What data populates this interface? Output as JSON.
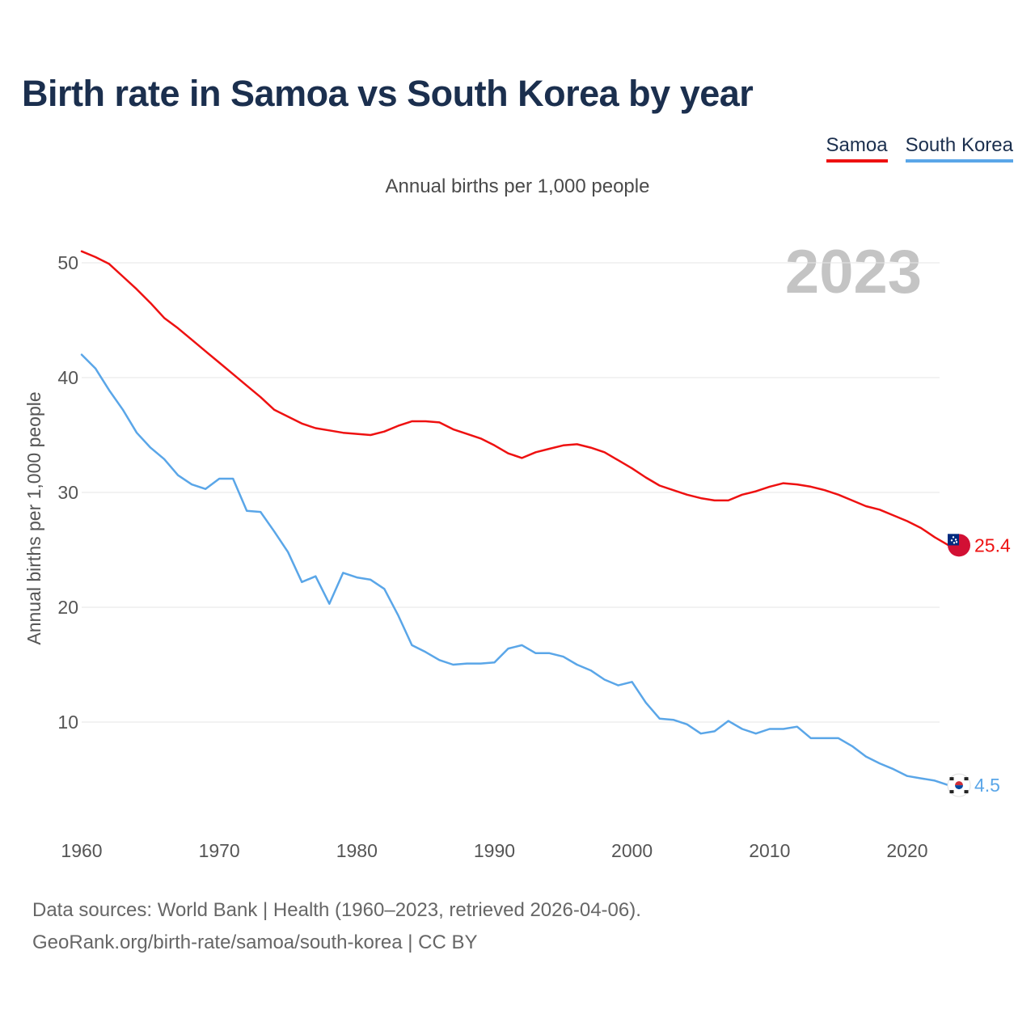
{
  "header": {
    "title": "Birth rate in Samoa vs South Korea by year"
  },
  "legend": {
    "items": [
      {
        "label": "Samoa",
        "color": "#ee1111"
      },
      {
        "label": "South Korea",
        "color": "#5aa6e8"
      }
    ]
  },
  "footer": {
    "source": "Data sources: World Bank | Health (1960–2023, retrieved 2026-04-06).",
    "credit": "GeoRank.org/birth-rate/samoa/south-korea | CC BY"
  },
  "chart_data": {
    "type": "line",
    "title": "Birth rate in Samoa vs South Korea by year",
    "subtitle": "Annual births per 1,000 people",
    "xlabel": "",
    "ylabel": "Annual births per 1,000 people",
    "year_watermark": "2023",
    "xlim": [
      1960,
      2023
    ],
    "ylim": [
      0,
      50
    ],
    "x_ticks": [
      1960,
      1970,
      1980,
      1990,
      2000,
      2010,
      2020
    ],
    "y_ticks": [
      10,
      20,
      30,
      40,
      50
    ],
    "grid": true,
    "x": [
      1960,
      1961,
      1962,
      1963,
      1964,
      1965,
      1966,
      1967,
      1968,
      1969,
      1970,
      1971,
      1972,
      1973,
      1974,
      1975,
      1976,
      1977,
      1978,
      1979,
      1980,
      1981,
      1982,
      1983,
      1984,
      1985,
      1986,
      1987,
      1988,
      1989,
      1990,
      1991,
      1992,
      1993,
      1994,
      1995,
      1996,
      1997,
      1998,
      1999,
      2000,
      2001,
      2002,
      2003,
      2004,
      2005,
      2006,
      2007,
      2008,
      2009,
      2010,
      2011,
      2012,
      2013,
      2014,
      2015,
      2016,
      2017,
      2018,
      2019,
      2020,
      2021,
      2022,
      2023
    ],
    "series": [
      {
        "name": "Samoa",
        "color": "#ee1111",
        "end_label": "25.4",
        "values": [
          51.0,
          50.5,
          49.9,
          48.8,
          47.7,
          46.5,
          45.2,
          44.3,
          43.3,
          42.3,
          41.3,
          40.3,
          39.3,
          38.3,
          37.2,
          36.6,
          36.0,
          35.6,
          35.4,
          35.2,
          35.1,
          35.0,
          35.3,
          35.8,
          36.2,
          36.2,
          36.1,
          35.5,
          35.1,
          34.7,
          34.1,
          33.4,
          33.0,
          33.5,
          33.8,
          34.1,
          34.2,
          33.9,
          33.5,
          32.8,
          32.1,
          31.3,
          30.6,
          30.2,
          29.8,
          29.5,
          29.3,
          29.3,
          29.8,
          30.1,
          30.5,
          30.8,
          30.7,
          30.5,
          30.2,
          29.8,
          29.3,
          28.8,
          28.5,
          28.0,
          27.5,
          26.9,
          26.1,
          25.4
        ]
      },
      {
        "name": "South Korea",
        "color": "#5aa6e8",
        "end_label": "4.5",
        "values": [
          42.0,
          40.8,
          38.9,
          37.2,
          35.2,
          33.9,
          32.9,
          31.5,
          30.7,
          30.3,
          31.2,
          31.2,
          28.4,
          28.3,
          26.6,
          24.8,
          22.2,
          22.7,
          20.3,
          23.0,
          22.6,
          22.4,
          21.6,
          19.3,
          16.7,
          16.1,
          15.4,
          15.0,
          15.1,
          15.1,
          15.2,
          16.4,
          16.7,
          16.0,
          16.0,
          15.7,
          15.0,
          14.5,
          13.7,
          13.2,
          13.5,
          11.7,
          10.3,
          10.2,
          9.8,
          9.0,
          9.2,
          10.1,
          9.4,
          9.0,
          9.4,
          9.4,
          9.6,
          8.6,
          8.6,
          8.6,
          7.9,
          7.0,
          6.4,
          5.9,
          5.3,
          5.1,
          4.9,
          4.5
        ]
      }
    ]
  }
}
